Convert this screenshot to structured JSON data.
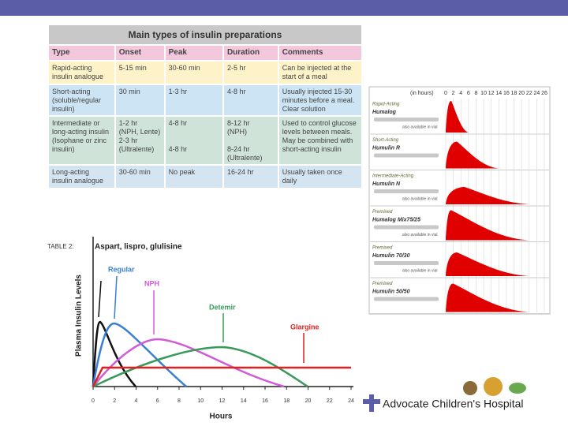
{
  "table": {
    "title": "Main types of insulin preparations",
    "headers": [
      "Type",
      "Onset",
      "Peak",
      "Duration",
      "Comments"
    ],
    "rows": [
      [
        "Rapid-acting insulin analogue",
        "5-15 min",
        "30-60 min",
        "2-5 hr",
        "Can be injected at the start of a meal"
      ],
      [
        "Short-acting (soluble/regular insulin)",
        "30 min",
        "1-3 hr",
        "4-8 hr",
        "Usually injected 15-30 minutes before a meal. Clear solution"
      ],
      [
        "Intermediate or long-acting insulin (Isophane or zinc insulin)",
        "1-2 hr\n(NPH, Lente)\n2-3 hr\n(Ultralente)",
        "4-8 hr\n\n\n4-8 hr",
        "8-12 hr\n(NPH)\n\n8-24 hr\n(Ultralente)",
        "Used to control glucose levels between meals. May be combined with short-acting insulin"
      ],
      [
        "Long-acting insulin analogue",
        "30-60 min",
        "No peak",
        "16-24 hr",
        "Usually taken once daily"
      ]
    ]
  },
  "figure_caption": "TABLE 2:",
  "curve_figure": {
    "title": "Aspart, lispro, glulisine",
    "y_label": "Plasma Insulin Levels",
    "x_label": "Hours",
    "x_ticks": [
      0,
      2,
      4,
      6,
      8,
      10,
      12,
      14,
      16,
      18,
      20,
      22,
      24
    ],
    "labels": [
      "Regular",
      "NPH",
      "Detemir",
      "Glargine"
    ]
  },
  "product_figure": {
    "header": "(in hours)",
    "ticks": [
      0,
      2,
      4,
      6,
      8,
      10,
      12,
      14,
      16,
      18,
      20,
      22,
      24,
      26
    ],
    "rows": [
      {
        "category": "Rapid-Acting",
        "product": "Humalog",
        "note": "also available in vial"
      },
      {
        "category": "Short-Acting",
        "product": "Humulin R",
        "note": ""
      },
      {
        "category": "Intermediate-Acting",
        "product": "Humulin N",
        "note": "also available in vial"
      },
      {
        "category": "Premixed",
        "product": "Humalog Mix75/25",
        "note": "also available in vial"
      },
      {
        "category": "Premixed",
        "product": "Humulin 70/30",
        "note": "also available in vial"
      },
      {
        "category": "Premixed",
        "product": "Humulin 50/50",
        "note": ""
      }
    ]
  },
  "footer": {
    "logo_text": "Advocate Children's Hospital"
  }
}
